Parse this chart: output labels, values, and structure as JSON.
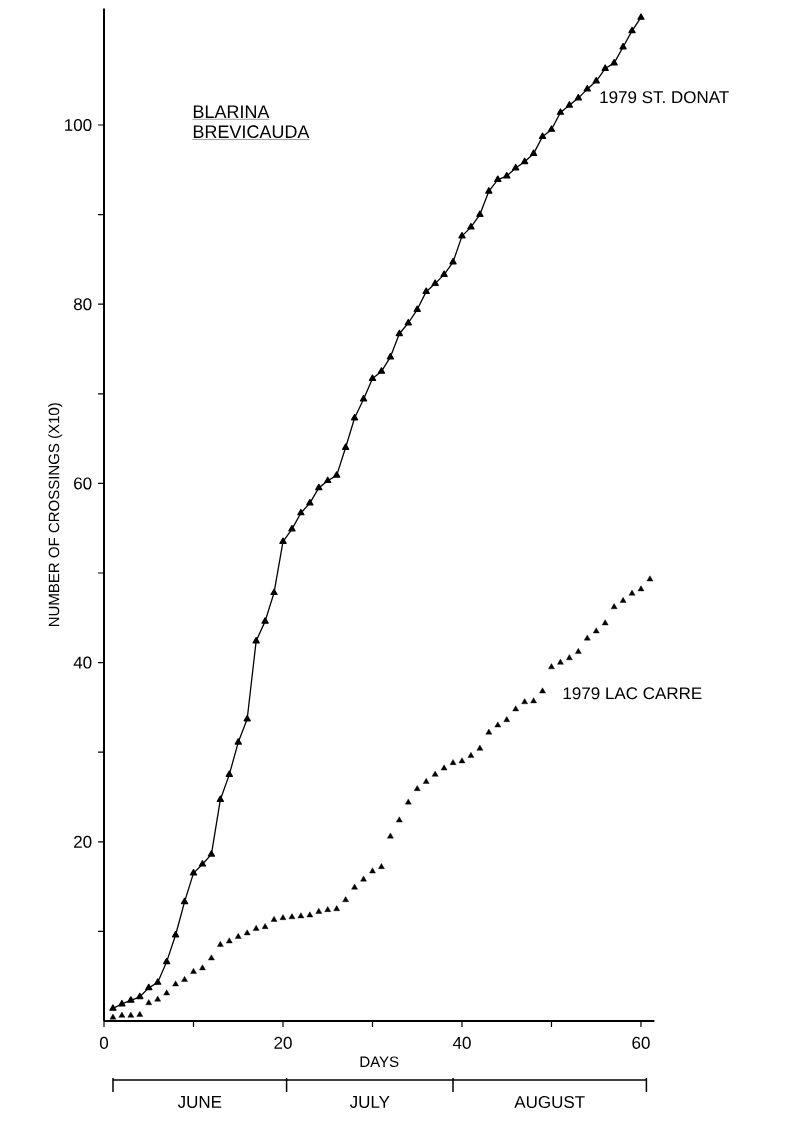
{
  "chart_data": {
    "type": "line",
    "xlabel": "DAYS",
    "ylabel": "NUMBER OF CROSSINGS (X10)",
    "annotations": [
      "BLARINA",
      "BREVICAUDA",
      "JUNE",
      "JULY",
      "AUGUST"
    ],
    "xlim": [
      0,
      61.5
    ],
    "ylim": [
      0,
      113
    ],
    "xticks": [
      0,
      {
        "value": 10,
        "label": null
      },
      20,
      {
        "value": 30,
        "label": null
      },
      40,
      {
        "value": 50,
        "label": null
      },
      60
    ],
    "yticks": [
      {
        "value": 10,
        "label": null
      },
      20,
      {
        "value": 30,
        "label": null
      },
      40,
      {
        "value": 50,
        "label": null
      },
      60,
      {
        "value": 70,
        "label": null
      },
      80,
      {
        "value": 90,
        "label": null
      },
      100
    ],
    "grid": false,
    "marker": "triangle",
    "series": [
      {
        "name": "1979 ST. DONAT",
        "color": "#000000",
        "line_style": "solid",
        "x": [
          1,
          2,
          3,
          4,
          5,
          6,
          7,
          8,
          9,
          10,
          11,
          12,
          13,
          14,
          15,
          16,
          17,
          18,
          19,
          20,
          21,
          22,
          23,
          24,
          25,
          26,
          27,
          28,
          29,
          30,
          31,
          32,
          33,
          34,
          35,
          36,
          37,
          38,
          39,
          40,
          41,
          42,
          43,
          44,
          45,
          46,
          47,
          48,
          49,
          50,
          51,
          52,
          53,
          54,
          55,
          56,
          57,
          58,
          59,
          60
        ],
        "values": [
          1.4,
          1.9,
          2.3,
          2.7,
          3.7,
          4.3,
          6.6,
          9.6,
          13.3,
          16.5,
          17.5,
          18.6,
          24.7,
          27.5,
          31.1,
          33.7,
          42.4,
          44.6,
          47.8,
          53.5,
          54.9,
          56.7,
          57.8,
          59.5,
          60.3,
          60.9,
          64.0,
          67.3,
          69.4,
          71.7,
          72.5,
          74.1,
          76.7,
          77.9,
          79.4,
          81.4,
          82.3,
          83.3,
          84.7,
          87.6,
          88.6,
          90.0,
          92.6,
          93.9,
          94.3,
          95.2,
          95.9,
          96.8,
          98.7,
          99.5,
          101.4,
          102.2,
          103.0,
          104.0,
          104.9,
          106.3,
          106.9,
          108.7,
          110.5,
          112.0
        ]
      },
      {
        "name": "1979 LAC CARRE",
        "type": "scatter",
        "color": "#000000",
        "x": [
          1,
          2,
          3,
          4,
          5,
          6,
          7,
          8,
          9,
          10,
          11,
          12,
          13,
          14,
          15,
          16,
          17,
          18,
          19,
          20,
          21,
          22,
          23,
          24,
          25,
          26,
          27,
          28,
          29,
          30,
          31,
          32,
          33,
          34,
          35,
          36,
          37,
          38,
          39,
          40,
          41,
          42,
          43,
          44,
          45,
          46,
          47,
          48,
          49,
          50,
          51,
          52,
          53,
          54,
          55,
          56,
          57,
          58,
          59,
          60,
          61
        ],
        "values": [
          0.4,
          0.6,
          0.6,
          0.7,
          2.0,
          2.4,
          3.1,
          4.1,
          4.6,
          5.5,
          5.9,
          7.0,
          8.5,
          8.9,
          9.4,
          9.8,
          10.3,
          10.5,
          11.3,
          11.5,
          11.6,
          11.7,
          11.8,
          12.2,
          12.4,
          12.5,
          13.5,
          14.9,
          15.8,
          16.7,
          17.2,
          20.6,
          22.4,
          24.4,
          25.9,
          26.7,
          27.5,
          28.2,
          28.8,
          29.0,
          29.6,
          30.4,
          32.2,
          33.0,
          33.6,
          34.8,
          35.6,
          35.7,
          36.8,
          39.5,
          40.0,
          40.5,
          41.2,
          42.7,
          43.5,
          44.4,
          46.2,
          46.9,
          47.7,
          48.2,
          49.3
        ]
      }
    ]
  }
}
